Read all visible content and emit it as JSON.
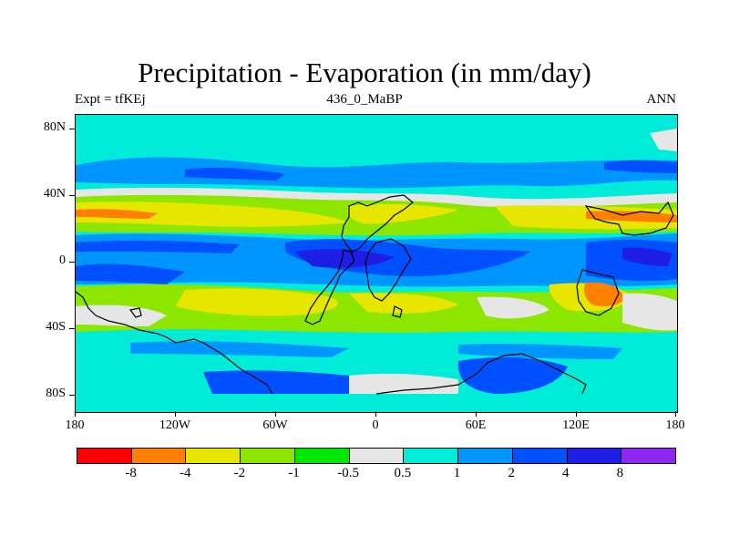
{
  "title": "Precipitation - Evaporation (in mm/day)",
  "subtitle_left": "Expt = tfKEj",
  "subtitle_center": "436_0_MaBP",
  "subtitle_right": "ANN",
  "y_ticks": [
    "80N",
    "40N",
    "0",
    "40S",
    "80S"
  ],
  "x_ticks": [
    "180",
    "120W",
    "60W",
    "0",
    "60E",
    "120E",
    "180"
  ],
  "colorbar": {
    "colors": [
      "#ff0000",
      "#ff8000",
      "#e6e600",
      "#8ce600",
      "#00e600",
      "#e6e6e6",
      "#00ebd8",
      "#0096ff",
      "#0050ff",
      "#1e1ee6",
      "#8c28f0"
    ],
    "labels": [
      "-8",
      "-4",
      "-2",
      "-1",
      "-0.5",
      "0.5",
      "1",
      "2",
      "4",
      "8"
    ]
  }
}
